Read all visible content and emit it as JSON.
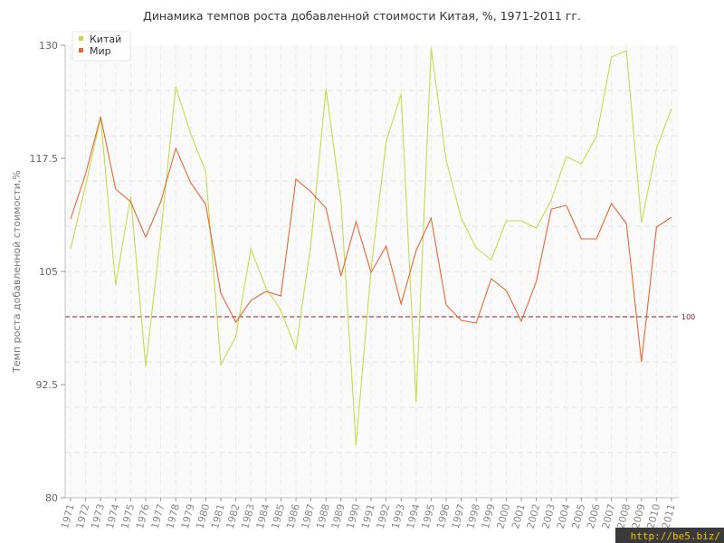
{
  "chart_data": {
    "type": "line",
    "title": "Динамика темпов роста добавленной стоимости Китая, %, 1971-2011 гг.",
    "ylabel": "Темп роста добавленной стоимости,%",
    "xlabel": "",
    "ylim": [
      80,
      130
    ],
    "y_ticks": [
      "80",
      "92.5",
      "105",
      "117.5",
      "130"
    ],
    "categories": [
      "1971",
      "1972",
      "1973",
      "1974",
      "1975",
      "1976",
      "1977",
      "1978",
      "1979",
      "1980",
      "1981",
      "1982",
      "1983",
      "1984",
      "1985",
      "1986",
      "1987",
      "1988",
      "1989",
      "1990",
      "1991",
      "1992",
      "1993",
      "1994",
      "1995",
      "1996",
      "1997",
      "1998",
      "1999",
      "2000",
      "2001",
      "2002",
      "2003",
      "2004",
      "2005",
      "2006",
      "2007",
      "2008",
      "2009",
      "2010",
      "2011"
    ],
    "series": [
      {
        "name": "Китай",
        "color": "#c5dc4e",
        "values": [
          107.5,
          114.5,
          122,
          103.5,
          113.3,
          94.5,
          109,
          125.4,
          120.2,
          116,
          94.7,
          97.8,
          107.5,
          103.2,
          100.7,
          96.4,
          108.1,
          125.2,
          112.7,
          85.8,
          105.2,
          119.3,
          124.6,
          90.6,
          129.7,
          117.3,
          110.9,
          107.6,
          106.3,
          110.6,
          110.6,
          109.8,
          112.9,
          117.7,
          116.9,
          119.9,
          128.7,
          129.4,
          110.4,
          118.6,
          123
        ]
      },
      {
        "name": "Мир",
        "color": "#e26a3a",
        "values": [
          110.8,
          115.8,
          122.1,
          114.1,
          112.7,
          108.8,
          112.7,
          118.6,
          114.8,
          112.4,
          102.6,
          99.4,
          101.8,
          102.8,
          102.3,
          115.2,
          113.8,
          112,
          104.5,
          110.5,
          104.9,
          107.8,
          101.4,
          107.3,
          110.9,
          101.3,
          99.6,
          99.3,
          104.2,
          102.9,
          99.5,
          103.9,
          111.9,
          112.3,
          108.6,
          108.6,
          112.5,
          110.3,
          95,
          109.9,
          111
        ]
      }
    ],
    "reference_line": {
      "value": 100,
      "label": "100",
      "color": "#8b1c2a"
    },
    "grid": true,
    "legend_position": "top-left"
  },
  "watermark": "http://be5.biz/"
}
